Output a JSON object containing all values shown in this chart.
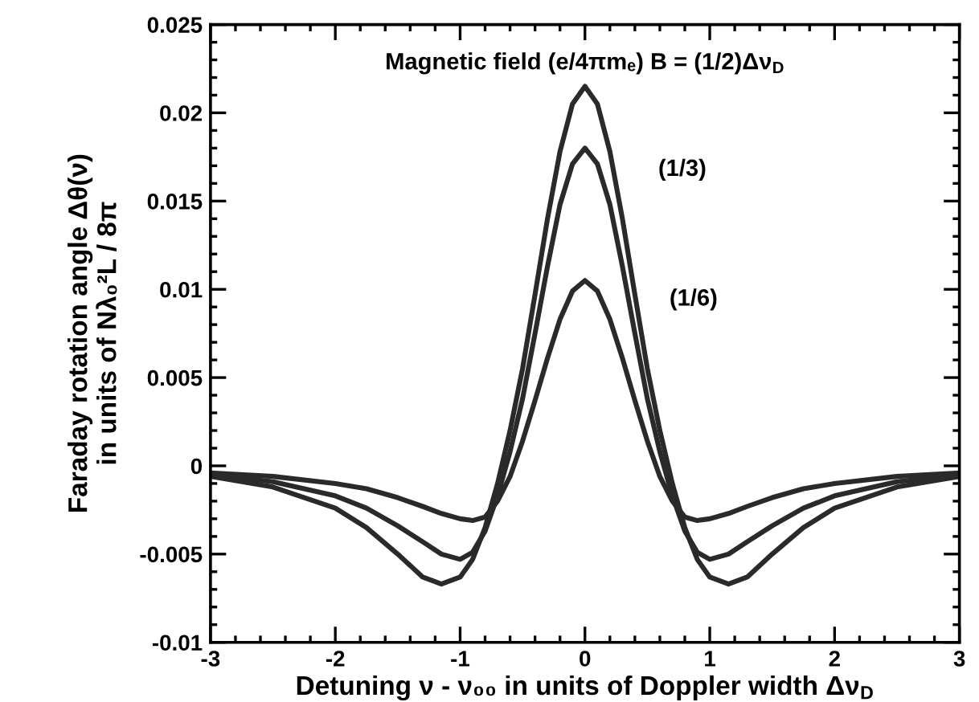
{
  "chart_data": {
    "type": "line",
    "xlabel": "Detuning ν - ν₀₀ in units of Doppler width Δν$_{D}$",
    "ylabel": "Faraday rotation angle Δθ(ν)\nin units of Nλ₀²L / 8π",
    "xlim": [
      -3,
      3
    ],
    "xticks": [
      -3,
      -2,
      -1,
      0,
      1,
      2,
      3
    ],
    "ylim": [
      -0.01,
      0.025
    ],
    "yticks": [
      -0.01,
      -0.005,
      0,
      0.005,
      0.01,
      0.015,
      0.02,
      0.025
    ],
    "marker": "none",
    "line_style": "solid",
    "x": [
      -3,
      -2.5,
      -2,
      -1.75,
      -1.5,
      -1.3,
      -1.15,
      -1.0,
      -0.9,
      -0.8,
      -0.7,
      -0.6,
      -0.5,
      -0.4,
      -0.3,
      -0.2,
      -0.1,
      0,
      0.1,
      0.2,
      0.3,
      0.4,
      0.5,
      0.6,
      0.7,
      0.8,
      0.9,
      1.0,
      1.15,
      1.3,
      1.5,
      1.75,
      2,
      2.5,
      3
    ],
    "series": [
      {
        "color": "#2a2a2a",
        "values": [
          -0.0006,
          -0.0012,
          -0.0024,
          -0.0035,
          -0.005,
          -0.0063,
          -0.0067,
          -0.0063,
          -0.0053,
          -0.0035,
          -0.001,
          0.002,
          0.0055,
          0.0097,
          0.014,
          0.0178,
          0.0205,
          0.0215,
          0.0205,
          0.0178,
          0.014,
          0.0097,
          0.0055,
          0.002,
          -0.001,
          -0.0035,
          -0.0053,
          -0.0063,
          -0.0067,
          -0.0063,
          -0.005,
          -0.0035,
          -0.0024,
          -0.0012,
          -0.0006
        ]
      },
      {
        "color": "#2a2a2a",
        "values": [
          -0.0005,
          -0.0009,
          -0.0017,
          -0.0024,
          -0.0034,
          -0.0043,
          -0.005,
          -0.0053,
          -0.0049,
          -0.0037,
          -0.0017,
          0.0008,
          0.0038,
          0.0075,
          0.0113,
          0.0148,
          0.0171,
          0.018,
          0.0171,
          0.0148,
          0.0113,
          0.0075,
          0.0038,
          0.0008,
          -0.0017,
          -0.0037,
          -0.0049,
          -0.0053,
          -0.005,
          -0.0043,
          -0.0034,
          -0.0024,
          -0.0017,
          -0.0009,
          -0.0005
        ]
      },
      {
        "color": "#2a2a2a",
        "values": [
          -0.0004,
          -0.0006,
          -0.001,
          -0.0013,
          -0.0018,
          -0.0023,
          -0.0027,
          -0.003,
          -0.0031,
          -0.0029,
          -0.002,
          -0.0006,
          0.0014,
          0.0037,
          0.0061,
          0.0083,
          0.0099,
          0.0105,
          0.0099,
          0.0083,
          0.0061,
          0.0037,
          0.0014,
          -0.0006,
          -0.002,
          -0.0029,
          -0.0031,
          -0.003,
          -0.0027,
          -0.0023,
          -0.0018,
          -0.0013,
          -0.001,
          -0.0006,
          -0.0004
        ]
      }
    ],
    "annotations": [
      "Magnetic field (e/4πmₑ) B = (1/2)Δν$_{D}$",
      "(1/3)",
      "(1/6)"
    ]
  }
}
